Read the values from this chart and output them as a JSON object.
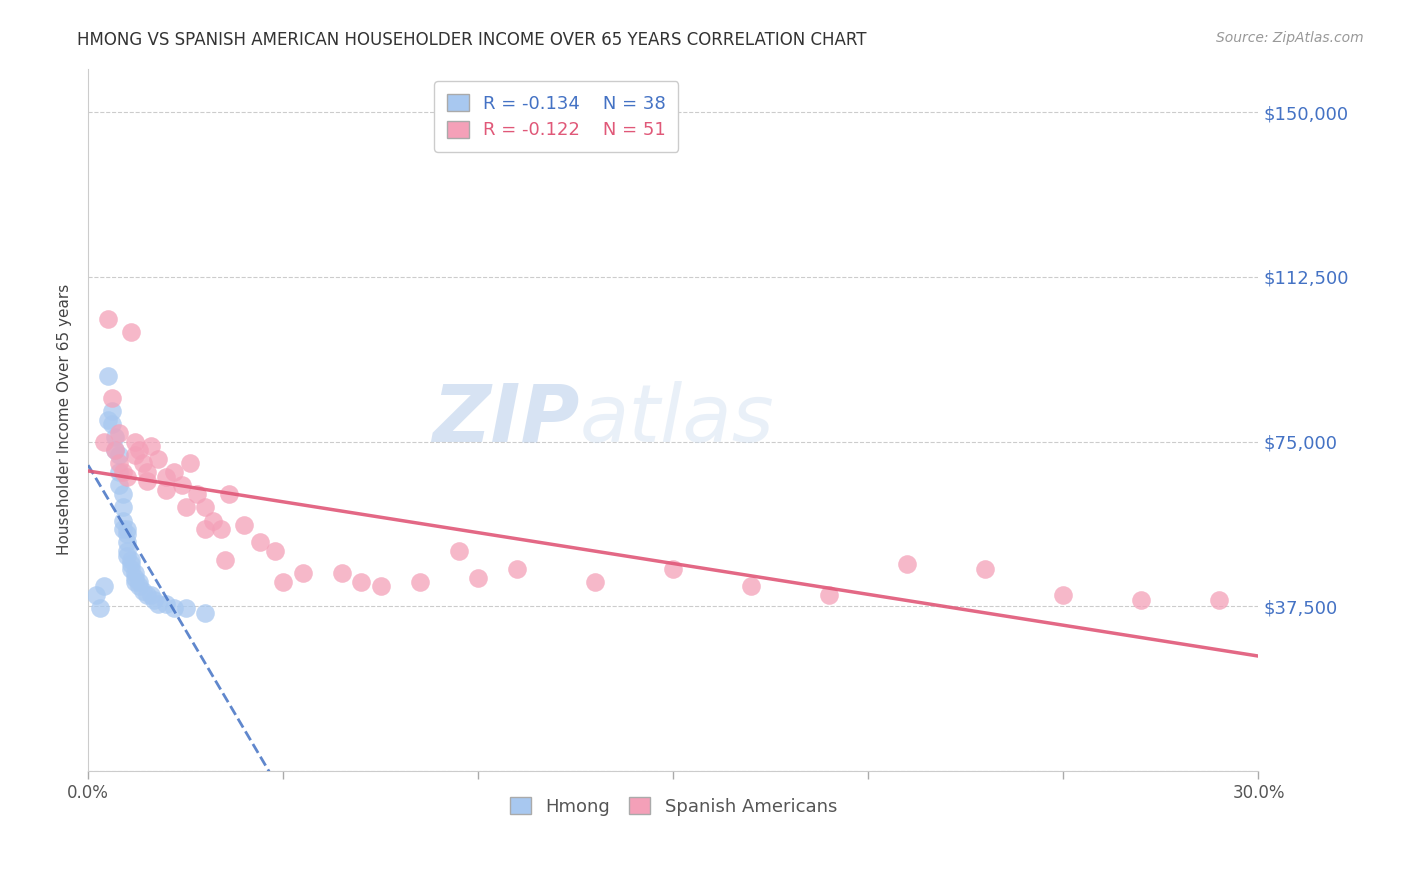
{
  "title": "HMONG VS SPANISH AMERICAN HOUSEHOLDER INCOME OVER 65 YEARS CORRELATION CHART",
  "source": "Source: ZipAtlas.com",
  "ylabel": "Householder Income Over 65 years",
  "xlim": [
    0.0,
    0.3
  ],
  "ylim": [
    0,
    160000
  ],
  "yticks": [
    0,
    37500,
    75000,
    112500,
    150000
  ],
  "ytick_labels": [
    "",
    "$37,500",
    "$75,000",
    "$112,500",
    "$150,000"
  ],
  "xtick_positions": [
    0.0,
    0.05,
    0.1,
    0.15,
    0.2,
    0.25,
    0.3
  ],
  "hmong_R": -0.134,
  "hmong_N": 38,
  "spanish_R": -0.122,
  "spanish_N": 51,
  "hmong_color": "#a8c8f0",
  "spanish_color": "#f4a0b8",
  "hmong_line_color": "#4472c4",
  "spanish_line_color": "#e05878",
  "watermark_text": "ZIPatlas",
  "watermark_color": "#c5d8f0",
  "background_color": "#ffffff",
  "grid_color": "#cccccc",
  "title_color": "#333333",
  "axis_label_color": "#444444",
  "right_tick_color": "#4472c4",
  "hmong_points_x": [
    0.002,
    0.003,
    0.004,
    0.005,
    0.005,
    0.006,
    0.006,
    0.007,
    0.007,
    0.008,
    0.008,
    0.008,
    0.009,
    0.009,
    0.009,
    0.009,
    0.01,
    0.01,
    0.01,
    0.01,
    0.01,
    0.011,
    0.011,
    0.011,
    0.012,
    0.012,
    0.012,
    0.013,
    0.013,
    0.014,
    0.015,
    0.016,
    0.017,
    0.018,
    0.02,
    0.022,
    0.025,
    0.03
  ],
  "hmong_points_y": [
    40000,
    37000,
    42000,
    90000,
    80000,
    82000,
    79000,
    76000,
    73000,
    72000,
    68000,
    65000,
    63000,
    60000,
    57000,
    55000,
    55000,
    54000,
    52000,
    50000,
    49000,
    48000,
    47000,
    46000,
    45000,
    44000,
    43000,
    43000,
    42000,
    41000,
    40000,
    40000,
    39000,
    38000,
    38000,
    37000,
    37000,
    36000
  ],
  "spanish_points_x": [
    0.004,
    0.006,
    0.007,
    0.008,
    0.009,
    0.01,
    0.011,
    0.012,
    0.013,
    0.014,
    0.015,
    0.016,
    0.018,
    0.02,
    0.022,
    0.024,
    0.026,
    0.028,
    0.03,
    0.032,
    0.034,
    0.036,
    0.04,
    0.044,
    0.048,
    0.055,
    0.065,
    0.075,
    0.085,
    0.095,
    0.11,
    0.13,
    0.15,
    0.17,
    0.19,
    0.21,
    0.23,
    0.25,
    0.27,
    0.29,
    0.005,
    0.008,
    0.012,
    0.015,
    0.02,
    0.025,
    0.03,
    0.035,
    0.05,
    0.07,
    0.1
  ],
  "spanish_points_y": [
    75000,
    85000,
    73000,
    70000,
    68000,
    67000,
    100000,
    75000,
    73000,
    70000,
    68000,
    74000,
    71000,
    67000,
    68000,
    65000,
    70000,
    63000,
    60000,
    57000,
    55000,
    63000,
    56000,
    52000,
    50000,
    45000,
    45000,
    42000,
    43000,
    50000,
    46000,
    43000,
    46000,
    42000,
    40000,
    47000,
    46000,
    40000,
    39000,
    39000,
    103000,
    77000,
    72000,
    66000,
    64000,
    60000,
    55000,
    48000,
    43000,
    43000,
    44000
  ]
}
